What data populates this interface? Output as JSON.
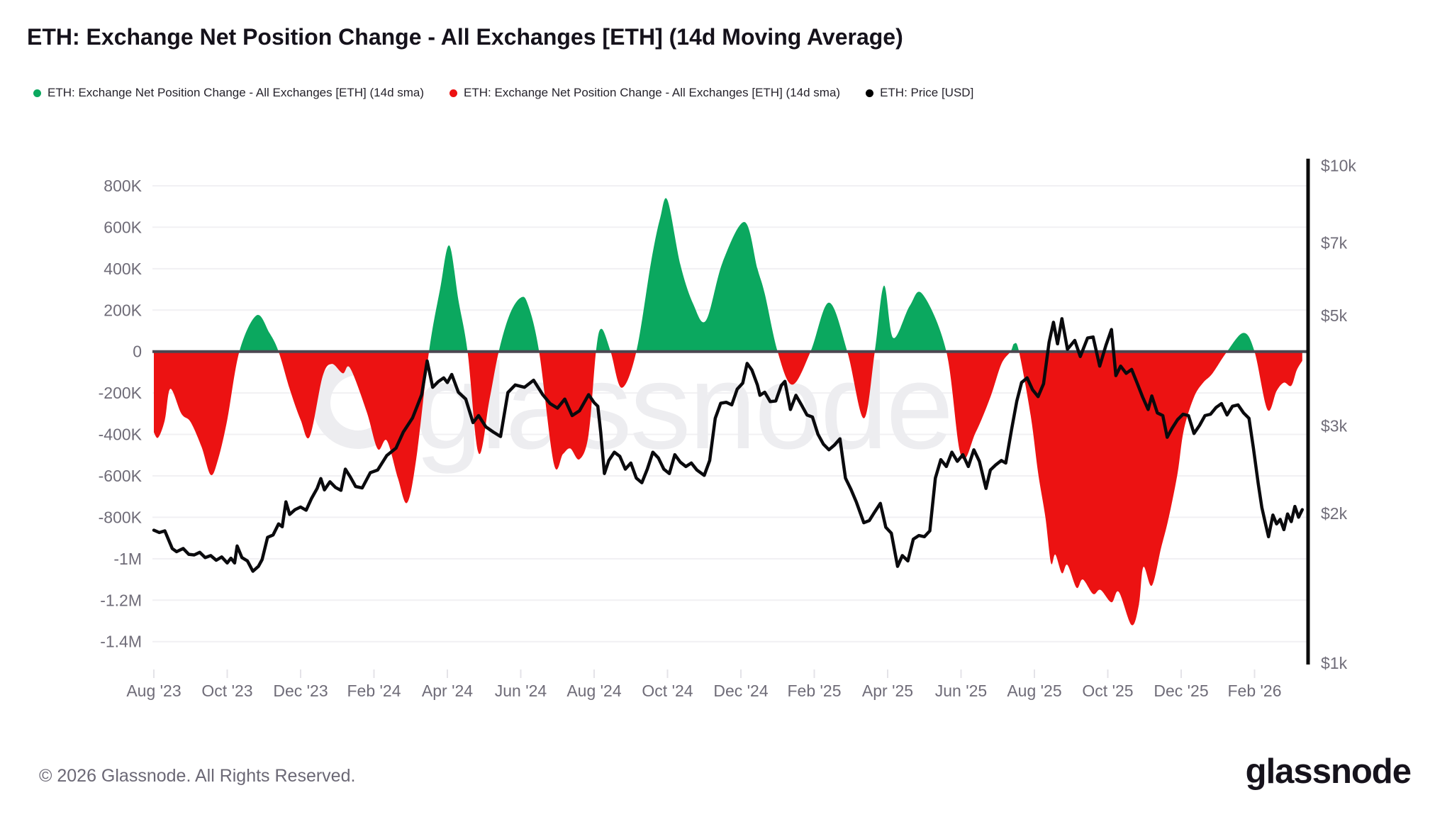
{
  "header": {
    "title": "ETH: Exchange Net Position Change - All Exchanges [ETH] (14d Moving Average)"
  },
  "legend": [
    {
      "label": "ETH: Exchange Net Position Change - All Exchanges [ETH] (14d sma)",
      "color": "#0ba85f"
    },
    {
      "label": "ETH: Exchange Net Position Change - All Exchanges [ETH] (14d sma)",
      "color": "#ec1212"
    },
    {
      "label": "ETH: Price [USD]",
      "color": "#000000"
    }
  ],
  "watermark": {
    "text": "glassnode"
  },
  "footer": {
    "copyright": "© 2026 Glassnode. All Rights Reserved.",
    "brand": "glassnode"
  },
  "chart_data": {
    "type": "area+line",
    "title": "ETH: Exchange Net Position Change - All Exchanges [ETH] (14d Moving Average)",
    "x_unit": "months since 2023-08-01",
    "x_ticks": {
      "months": [
        0,
        2,
        4,
        6,
        8,
        10,
        12,
        14,
        16,
        18,
        20,
        22,
        24,
        26,
        28,
        30
      ],
      "labels": [
        "Aug '23",
        "Oct '23",
        "Dec '23",
        "Feb '24",
        "Apr '24",
        "Jun '24",
        "Aug '24",
        "Oct '24",
        "Dec '24",
        "Feb '25",
        "Apr '25",
        "Jun '25",
        "Aug '25",
        "Oct '25",
        "Dec '25",
        "Feb '26"
      ]
    },
    "left_axis": {
      "unit": "ETH",
      "range_kETH": [
        -1400,
        800
      ],
      "grid": true,
      "ticks": [
        {
          "v": 800,
          "label": "800K"
        },
        {
          "v": 600,
          "label": "600K"
        },
        {
          "v": 400,
          "label": "400K"
        },
        {
          "v": 200,
          "label": "200K"
        },
        {
          "v": 0,
          "label": "0"
        },
        {
          "v": -200,
          "label": "-200K"
        },
        {
          "v": -400,
          "label": "-400K"
        },
        {
          "v": -600,
          "label": "-600K"
        },
        {
          "v": -800,
          "label": "-800K"
        },
        {
          "v": -1000,
          "label": "-1M"
        },
        {
          "v": -1200,
          "label": "-1.2M"
        },
        {
          "v": -1400,
          "label": "-1.4M"
        }
      ]
    },
    "right_axis": {
      "unit": "USD",
      "scale": "log",
      "range_usd": [
        1000,
        10000
      ],
      "ticks": [
        {
          "p": 10000,
          "label": "$10k"
        },
        {
          "p": 7000,
          "label": "$7k"
        },
        {
          "p": 5000,
          "label": "$5k"
        },
        {
          "p": 3000,
          "label": "$3k"
        },
        {
          "p": 2000,
          "label": "$2k"
        },
        {
          "p": 1000,
          "label": "$1k"
        }
      ]
    },
    "series": [
      {
        "name": "ETH: Exchange Net Position Change - All Exchanges [ETH] (14d sma)",
        "positive_color": "#0ba85f",
        "negative_color": "#ec1212",
        "unit": "thousand ETH"
      },
      {
        "name": "ETH: Price [USD]",
        "color": "#0a0a0d",
        "unit": "USD"
      }
    ],
    "net_position_14d_sma_kETH": [
      [
        0,
        -390
      ],
      [
        0.12,
        -415
      ],
      [
        0.3,
        -330
      ],
      [
        0.45,
        -180
      ],
      [
        0.75,
        -300
      ],
      [
        1.0,
        -340
      ],
      [
        1.3,
        -460
      ],
      [
        1.55,
        -595
      ],
      [
        1.75,
        -520
      ],
      [
        2.0,
        -330
      ],
      [
        2.33,
        0
      ],
      [
        2.8,
        175
      ],
      [
        3.15,
        90
      ],
      [
        3.4,
        0
      ],
      [
        3.7,
        -180
      ],
      [
        4.0,
        -330
      ],
      [
        4.25,
        -410
      ],
      [
        4.6,
        -120
      ],
      [
        4.85,
        -60
      ],
      [
        5.15,
        -105
      ],
      [
        5.35,
        -80
      ],
      [
        5.8,
        -290
      ],
      [
        6.1,
        -470
      ],
      [
        6.35,
        -430
      ],
      [
        6.65,
        -610
      ],
      [
        6.9,
        -730
      ],
      [
        7.15,
        -520
      ],
      [
        7.5,
        0
      ],
      [
        7.8,
        300
      ],
      [
        8.05,
        512
      ],
      [
        8.3,
        250
      ],
      [
        8.55,
        0
      ],
      [
        8.85,
        -490
      ],
      [
        9.15,
        -230
      ],
      [
        9.4,
        0
      ],
      [
        9.7,
        180
      ],
      [
        10.0,
        260
      ],
      [
        10.2,
        225
      ],
      [
        10.5,
        0
      ],
      [
        10.9,
        -540
      ],
      [
        11.15,
        -495
      ],
      [
        11.35,
        -468
      ],
      [
        11.6,
        -520
      ],
      [
        11.85,
        -400
      ],
      [
        12.05,
        0
      ],
      [
        12.2,
        110
      ],
      [
        12.45,
        0
      ],
      [
        12.75,
        -175
      ],
      [
        13.15,
        0
      ],
      [
        13.55,
        430
      ],
      [
        13.8,
        645
      ],
      [
        14.0,
        730
      ],
      [
        14.35,
        420
      ],
      [
        14.7,
        230
      ],
      [
        15.05,
        150
      ],
      [
        15.5,
        430
      ],
      [
        16.1,
        625
      ],
      [
        16.45,
        400
      ],
      [
        16.65,
        280
      ],
      [
        17.0,
        0
      ],
      [
        17.4,
        -160
      ],
      [
        17.9,
        0
      ],
      [
        18.4,
        236
      ],
      [
        18.9,
        0
      ],
      [
        19.35,
        -322
      ],
      [
        19.65,
        0
      ],
      [
        19.9,
        318
      ],
      [
        20.15,
        66
      ],
      [
        20.6,
        220
      ],
      [
        20.95,
        277
      ],
      [
        21.6,
        0
      ],
      [
        22.0,
        -503
      ],
      [
        22.4,
        -390
      ],
      [
        22.8,
        -220
      ],
      [
        23.1,
        -60
      ],
      [
        23.35,
        0
      ],
      [
        23.45,
        38
      ],
      [
        23.58,
        0
      ],
      [
        23.9,
        -310
      ],
      [
        24.1,
        -585
      ],
      [
        24.3,
        -800
      ],
      [
        24.45,
        -1020
      ],
      [
        24.57,
        -980
      ],
      [
        24.75,
        -1070
      ],
      [
        24.9,
        -1030
      ],
      [
        25.15,
        -1140
      ],
      [
        25.32,
        -1100
      ],
      [
        25.6,
        -1170
      ],
      [
        25.8,
        -1150
      ],
      [
        26.1,
        -1210
      ],
      [
        26.3,
        -1160
      ],
      [
        26.65,
        -1320
      ],
      [
        26.85,
        -1220
      ],
      [
        26.97,
        -1040
      ],
      [
        27.2,
        -1130
      ],
      [
        27.45,
        -950
      ],
      [
        27.65,
        -810
      ],
      [
        27.9,
        -590
      ],
      [
        28.07,
        -380
      ],
      [
        28.35,
        -220
      ],
      [
        28.6,
        -150
      ],
      [
        28.85,
        -106
      ],
      [
        29.25,
        0
      ],
      [
        29.7,
        90
      ],
      [
        30.0,
        0
      ],
      [
        30.35,
        -280
      ],
      [
        30.6,
        -190
      ],
      [
        30.8,
        -150
      ],
      [
        31.0,
        -165
      ],
      [
        31.15,
        -90
      ],
      [
        31.3,
        -45
      ]
    ],
    "price_usd": [
      [
        0,
        1850
      ],
      [
        0.15,
        1830
      ],
      [
        0.3,
        1845
      ],
      [
        0.5,
        1700
      ],
      [
        0.62,
        1675
      ],
      [
        0.8,
        1700
      ],
      [
        0.95,
        1655
      ],
      [
        1.1,
        1650
      ],
      [
        1.25,
        1670
      ],
      [
        1.4,
        1630
      ],
      [
        1.55,
        1645
      ],
      [
        1.7,
        1610
      ],
      [
        1.85,
        1635
      ],
      [
        2.0,
        1590
      ],
      [
        2.1,
        1625
      ],
      [
        2.2,
        1590
      ],
      [
        2.27,
        1720
      ],
      [
        2.4,
        1630
      ],
      [
        2.55,
        1605
      ],
      [
        2.7,
        1530
      ],
      [
        2.85,
        1565
      ],
      [
        2.95,
        1615
      ],
      [
        3.1,
        1790
      ],
      [
        3.25,
        1810
      ],
      [
        3.4,
        1905
      ],
      [
        3.5,
        1880
      ],
      [
        3.6,
        2110
      ],
      [
        3.7,
        1990
      ],
      [
        3.85,
        2035
      ],
      [
        4.0,
        2060
      ],
      [
        4.15,
        2030
      ],
      [
        4.3,
        2145
      ],
      [
        4.45,
        2245
      ],
      [
        4.55,
        2350
      ],
      [
        4.65,
        2230
      ],
      [
        4.8,
        2315
      ],
      [
        4.95,
        2255
      ],
      [
        5.1,
        2225
      ],
      [
        5.22,
        2455
      ],
      [
        5.35,
        2370
      ],
      [
        5.5,
        2265
      ],
      [
        5.68,
        2250
      ],
      [
        5.9,
        2415
      ],
      [
        6.1,
        2445
      ],
      [
        6.35,
        2615
      ],
      [
        6.6,
        2705
      ],
      [
        6.8,
        2915
      ],
      [
        7.05,
        3110
      ],
      [
        7.3,
        3465
      ],
      [
        7.45,
        4050
      ],
      [
        7.6,
        3585
      ],
      [
        7.75,
        3680
      ],
      [
        7.9,
        3745
      ],
      [
        8.0,
        3665
      ],
      [
        8.12,
        3805
      ],
      [
        8.3,
        3505
      ],
      [
        8.5,
        3395
      ],
      [
        8.7,
        3045
      ],
      [
        8.85,
        3145
      ],
      [
        9.05,
        2985
      ],
      [
        9.25,
        2915
      ],
      [
        9.45,
        2855
      ],
      [
        9.65,
        3500
      ],
      [
        9.85,
        3625
      ],
      [
        10.1,
        3585
      ],
      [
        10.35,
        3705
      ],
      [
        10.6,
        3465
      ],
      [
        10.8,
        3325
      ],
      [
        11.0,
        3255
      ],
      [
        11.2,
        3395
      ],
      [
        11.4,
        3145
      ],
      [
        11.6,
        3215
      ],
      [
        11.85,
        3465
      ],
      [
        12.0,
        3340
      ],
      [
        12.1,
        3285
      ],
      [
        12.18,
        2910
      ],
      [
        12.28,
        2405
      ],
      [
        12.4,
        2555
      ],
      [
        12.55,
        2655
      ],
      [
        12.7,
        2605
      ],
      [
        12.85,
        2455
      ],
      [
        13.0,
        2525
      ],
      [
        13.15,
        2355
      ],
      [
        13.3,
        2305
      ],
      [
        13.45,
        2455
      ],
      [
        13.6,
        2655
      ],
      [
        13.75,
        2585
      ],
      [
        13.9,
        2455
      ],
      [
        14.05,
        2405
      ],
      [
        14.2,
        2625
      ],
      [
        14.35,
        2535
      ],
      [
        14.5,
        2485
      ],
      [
        14.65,
        2525
      ],
      [
        14.8,
        2445
      ],
      [
        15.0,
        2385
      ],
      [
        15.15,
        2555
      ],
      [
        15.3,
        3105
      ],
      [
        15.45,
        3330
      ],
      [
        15.6,
        3345
      ],
      [
        15.75,
        3305
      ],
      [
        15.9,
        3555
      ],
      [
        16.05,
        3655
      ],
      [
        16.17,
        4005
      ],
      [
        16.3,
        3885
      ],
      [
        16.45,
        3625
      ],
      [
        16.52,
        3455
      ],
      [
        16.65,
        3505
      ],
      [
        16.8,
        3355
      ],
      [
        16.95,
        3365
      ],
      [
        17.1,
        3615
      ],
      [
        17.2,
        3685
      ],
      [
        17.35,
        3235
      ],
      [
        17.5,
        3455
      ],
      [
        17.65,
        3305
      ],
      [
        17.8,
        3155
      ],
      [
        17.95,
        3125
      ],
      [
        18.1,
        2885
      ],
      [
        18.25,
        2755
      ],
      [
        18.4,
        2685
      ],
      [
        18.55,
        2745
      ],
      [
        18.7,
        2825
      ],
      [
        18.85,
        2355
      ],
      [
        19.0,
        2235
      ],
      [
        19.15,
        2105
      ],
      [
        19.35,
        1915
      ],
      [
        19.5,
        1935
      ],
      [
        19.65,
        2015
      ],
      [
        19.8,
        2095
      ],
      [
        19.95,
        1875
      ],
      [
        20.1,
        1825
      ],
      [
        20.27,
        1565
      ],
      [
        20.4,
        1645
      ],
      [
        20.55,
        1605
      ],
      [
        20.7,
        1775
      ],
      [
        20.85,
        1805
      ],
      [
        21.0,
        1795
      ],
      [
        21.15,
        1845
      ],
      [
        21.3,
        2355
      ],
      [
        21.45,
        2565
      ],
      [
        21.6,
        2485
      ],
      [
        21.75,
        2655
      ],
      [
        21.9,
        2545
      ],
      [
        22.05,
        2625
      ],
      [
        22.2,
        2485
      ],
      [
        22.35,
        2685
      ],
      [
        22.5,
        2545
      ],
      [
        22.68,
        2245
      ],
      [
        22.8,
        2445
      ],
      [
        22.95,
        2505
      ],
      [
        23.1,
        2555
      ],
      [
        23.22,
        2525
      ],
      [
        23.38,
        2955
      ],
      [
        23.52,
        3365
      ],
      [
        23.65,
        3665
      ],
      [
        23.8,
        3745
      ],
      [
        23.95,
        3545
      ],
      [
        24.1,
        3435
      ],
      [
        24.25,
        3645
      ],
      [
        24.4,
        4415
      ],
      [
        24.52,
        4845
      ],
      [
        24.63,
        4385
      ],
      [
        24.75,
        4925
      ],
      [
        24.9,
        4275
      ],
      [
        25.1,
        4455
      ],
      [
        25.25,
        4135
      ],
      [
        25.45,
        4505
      ],
      [
        25.6,
        4525
      ],
      [
        25.78,
        3955
      ],
      [
        25.95,
        4355
      ],
      [
        26.1,
        4685
      ],
      [
        26.22,
        3785
      ],
      [
        26.35,
        3955
      ],
      [
        26.5,
        3825
      ],
      [
        26.65,
        3895
      ],
      [
        26.8,
        3655
      ],
      [
        26.95,
        3425
      ],
      [
        27.1,
        3235
      ],
      [
        27.2,
        3445
      ],
      [
        27.35,
        3185
      ],
      [
        27.5,
        3145
      ],
      [
        27.62,
        2845
      ],
      [
        27.75,
        2965
      ],
      [
        27.9,
        3085
      ],
      [
        28.05,
        3165
      ],
      [
        28.2,
        3145
      ],
      [
        28.35,
        2895
      ],
      [
        28.5,
        3005
      ],
      [
        28.65,
        3145
      ],
      [
        28.8,
        3165
      ],
      [
        28.95,
        3265
      ],
      [
        29.1,
        3325
      ],
      [
        29.25,
        3155
      ],
      [
        29.4,
        3285
      ],
      [
        29.55,
        3305
      ],
      [
        29.7,
        3185
      ],
      [
        29.85,
        3105
      ],
      [
        29.97,
        2705
      ],
      [
        30.1,
        2295
      ],
      [
        30.2,
        2055
      ],
      [
        30.3,
        1905
      ],
      [
        30.38,
        1795
      ],
      [
        30.5,
        1985
      ],
      [
        30.6,
        1905
      ],
      [
        30.7,
        1945
      ],
      [
        30.8,
        1855
      ],
      [
        30.9,
        1995
      ],
      [
        31.0,
        1925
      ],
      [
        31.1,
        2065
      ],
      [
        31.2,
        1965
      ],
      [
        31.3,
        2035
      ]
    ],
    "colors": {
      "positive_area": "#0ba85f",
      "negative_area": "#ec1212",
      "price_line": "#0a0a0d",
      "zero_line": "#4b4751",
      "gridline": "#f1f0f3",
      "axis_label": "#6f6c78",
      "right_axis_line": "#0a0a0a",
      "watermark": "#ededf0"
    },
    "legend_position": "top-left",
    "grid": "horizontal-only"
  }
}
